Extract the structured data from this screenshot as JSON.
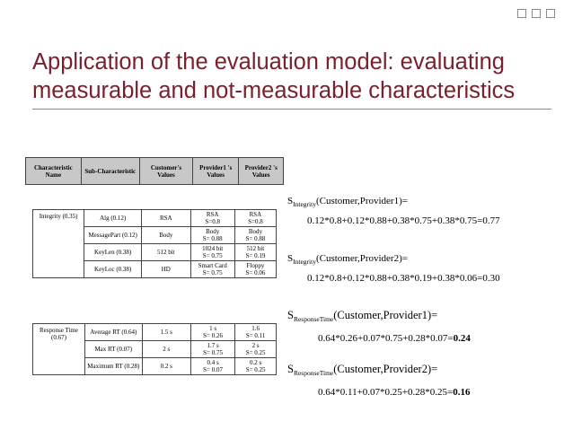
{
  "title": {
    "line1": "Application of the evaluation model: evaluating",
    "line2": "measurable and not-measurable characteristics"
  },
  "table": {
    "headers": [
      "Characteristic Name",
      "Sub-Characteristic",
      "Customer's Values",
      "Provider1 's Values",
      "Provider2 's Values"
    ],
    "integrity": {
      "name": "Integrity (0.35)",
      "rows": [
        {
          "sub": "Alg  (0.12)",
          "customer": "RSA",
          "p1": "RSA",
          "p1s": "S=0.8",
          "p2": "RSA",
          "p2s": "S=0.8"
        },
        {
          "sub": "MessagePart (0.12)",
          "customer": "Body",
          "p1": "Body",
          "p1s": "S= 0.88",
          "p2": "Body",
          "p2s": "S= 0.88"
        },
        {
          "sub": "KeyLen (0.38)",
          "customer": "512 bit",
          "p1": "1024 bit",
          "p1s": "S= 0.75",
          "p2": "512 bit",
          "p2s": "S= 0.19"
        },
        {
          "sub": "KeyLoc (0.38)",
          "customer": "HD",
          "p1": "Smart Card",
          "p1s": "S= 0.75",
          "p2": "Floppy",
          "p2s": "S= 0.06"
        }
      ]
    },
    "response": {
      "name": "Response Time  (0.67)",
      "rows": [
        {
          "sub": "Average RT (0.64)",
          "customer": "1.5 s",
          "p1": "1 s",
          "p1s": "S= 0.26",
          "p2": "1.6",
          "p2s": "S= 0.11"
        },
        {
          "sub": "Max RT (0.07)",
          "customer": "2 s",
          "p1": "1.7 s",
          "p1s": "S= 0.75",
          "p2": "2 s",
          "p2s": "S= 0.25"
        },
        {
          "sub": "Maximum RT (0.28)",
          "customer": "0.2 s",
          "p1": "0.4 s",
          "p1s": "S= 0.07",
          "p2": "0.2 s",
          "p2s": "S= 0.25"
        }
      ]
    }
  },
  "equations": [
    {
      "s": "S",
      "sub": "Integrity",
      "args": "(Customer,Provider1)=",
      "formula": "0.12*0.8+0.12*0.88+0.38*0.75+0.38*0.75=0.77",
      "result": ""
    },
    {
      "s": "S",
      "sub": "Integrity",
      "args": "(Customer,Provider2)=",
      "formula": "0.12*0.8+0.12*0.88+0.38*0.19+0.38*0.06=0.30",
      "result": ""
    },
    {
      "s": "S",
      "sub": "ResponseTime",
      "args": "(Customer,Provider1)=",
      "formula": "0.64*0.26+0.07*0.75+0.28*0.07=",
      "result": "0.24"
    },
    {
      "s": "S",
      "sub": "ResponseTime",
      "args": "(Customer,Provider2)=",
      "formula": "0.64*0.11+0.07*0.25+0.28*0.25=",
      "result": "0.16"
    }
  ]
}
